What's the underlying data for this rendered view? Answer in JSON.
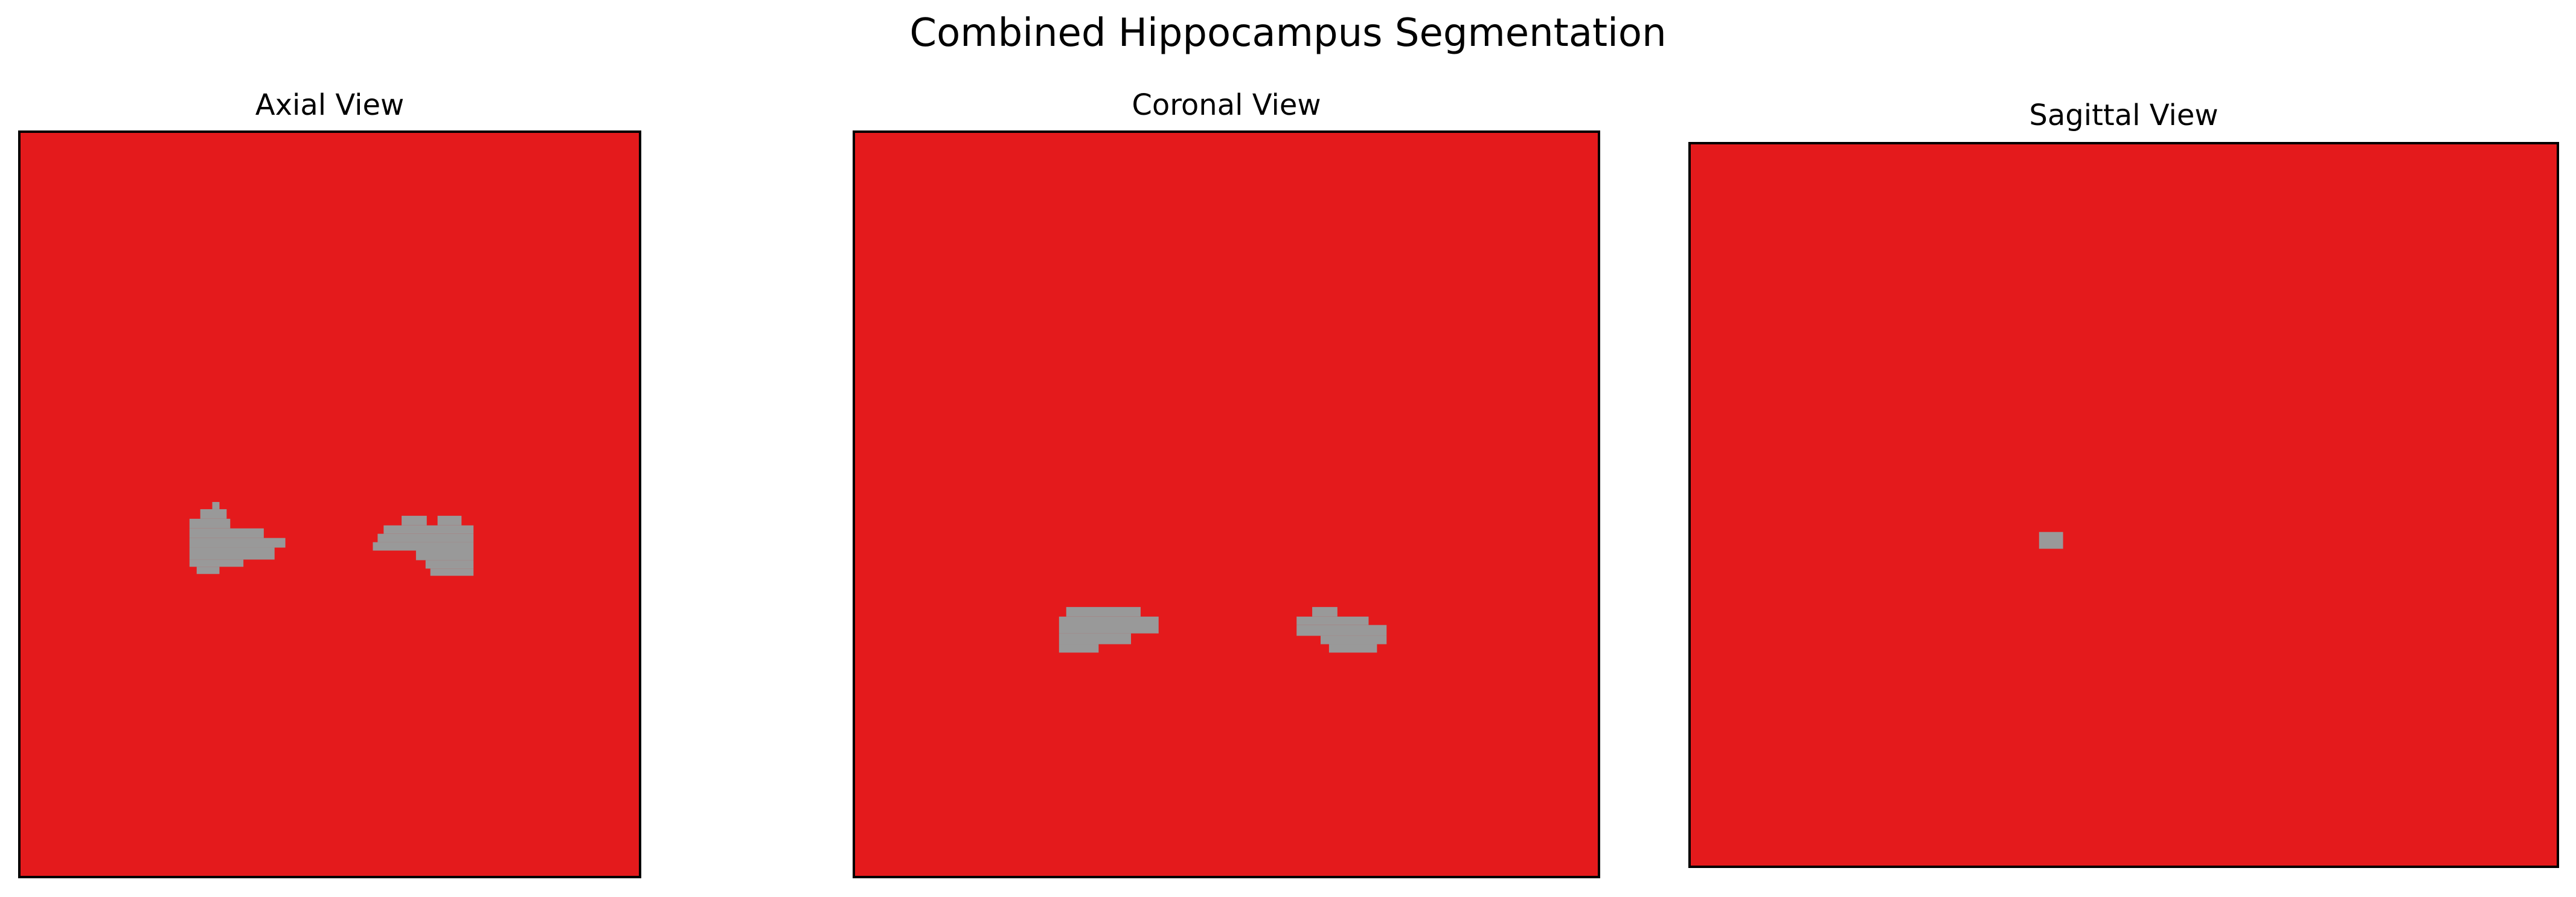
{
  "figure": {
    "title": "Combined Hippocampus Segmentation"
  },
  "colors": {
    "background_label": "#e41a1c",
    "region_label": "#999999",
    "frame": "#000000"
  },
  "views": [
    {
      "id": "axial",
      "title": "Axial View"
    },
    {
      "id": "coronal",
      "title": "Coronal View"
    },
    {
      "id": "sagittal",
      "title": "Sagittal View"
    }
  ]
}
